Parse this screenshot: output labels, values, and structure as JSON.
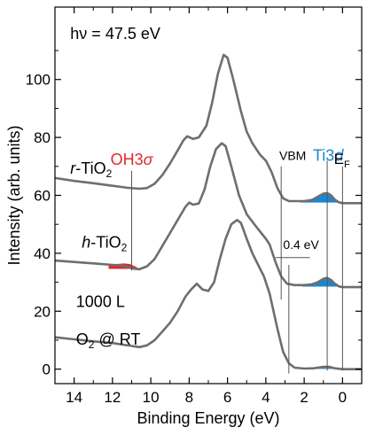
{
  "chart_data": {
    "type": "line",
    "title": "",
    "xlabel": "Binding Energy  (eV)",
    "ylabel": "Intensity  (arb. units)",
    "xlim": [
      15,
      -1
    ],
    "ylim": [
      -5,
      125
    ],
    "x_reversed": true,
    "x_ticks": [
      14,
      12,
      10,
      8,
      6,
      4,
      2,
      0
    ],
    "y_ticks": [
      0,
      20,
      40,
      60,
      80,
      100
    ],
    "grid": false,
    "legend": "none",
    "series": [
      {
        "name": "r-TiO2",
        "label_main": "r",
        "label_rest": "-TiO",
        "label_sub": "2",
        "color": "#6e6e6e",
        "points": [
          [
            15,
            66
          ],
          [
            14,
            65
          ],
          [
            13,
            64.2
          ],
          [
            12,
            63.3
          ],
          [
            11.2,
            62.6
          ],
          [
            10.6,
            62.3
          ],
          [
            10.2,
            62.5
          ],
          [
            9.8,
            64
          ],
          [
            9.4,
            67
          ],
          [
            9,
            71
          ],
          [
            8.6,
            75.5
          ],
          [
            8.3,
            79
          ],
          [
            8.1,
            80.4
          ],
          [
            7.8,
            79.5
          ],
          [
            7.5,
            80
          ],
          [
            7.1,
            84
          ],
          [
            6.8,
            92
          ],
          [
            6.5,
            102
          ],
          [
            6.2,
            108.5
          ],
          [
            6,
            107.5
          ],
          [
            5.7,
            100
          ],
          [
            5.3,
            89
          ],
          [
            5,
            82
          ],
          [
            4.7,
            78
          ],
          [
            4.3,
            74
          ],
          [
            4,
            72
          ],
          [
            3.7,
            68
          ],
          [
            3.4,
            62.5
          ],
          [
            3.1,
            59
          ],
          [
            2.8,
            58
          ],
          [
            2.4,
            58
          ],
          [
            2,
            58
          ],
          [
            1.6,
            58.4
          ],
          [
            1.3,
            59.5
          ],
          [
            1,
            60.6
          ],
          [
            0.8,
            60.8
          ],
          [
            0.6,
            60
          ],
          [
            0.4,
            58.5
          ],
          [
            0.2,
            57.6
          ],
          [
            0,
            57.3
          ],
          [
            -1,
            57.3
          ]
        ],
        "fill": {
          "color": "#1a86d0",
          "points": [
            [
              2.2,
              58
            ],
            [
              1.6,
              58.4
            ],
            [
              1.3,
              59.5
            ],
            [
              1,
              60.6
            ],
            [
              0.8,
              60.8
            ],
            [
              0.6,
              60
            ],
            [
              0.4,
              58.5
            ],
            [
              0.1,
              57.5
            ]
          ]
        }
      },
      {
        "name": "h-TiO2",
        "label_main": "h",
        "label_rest": "-TiO",
        "label_sub": "2",
        "color": "#6e6e6e",
        "points": [
          [
            15,
            37.5
          ],
          [
            14,
            37
          ],
          [
            13,
            36.5
          ],
          [
            12,
            36
          ],
          [
            11.5,
            35.8
          ],
          [
            11,
            34.8
          ],
          [
            10.6,
            34.5
          ],
          [
            10.2,
            35.5
          ],
          [
            9.8,
            38
          ],
          [
            9.4,
            42.5
          ],
          [
            9,
            47
          ],
          [
            8.6,
            51.5
          ],
          [
            8.2,
            56
          ],
          [
            8,
            57.5
          ],
          [
            7.8,
            56.8
          ],
          [
            7.5,
            57.2
          ],
          [
            7.2,
            62
          ],
          [
            6.9,
            70
          ],
          [
            6.6,
            76
          ],
          [
            6.3,
            78
          ],
          [
            6.1,
            77
          ],
          [
            5.8,
            70
          ],
          [
            5.4,
            60
          ],
          [
            5,
            53.5
          ],
          [
            4.6,
            50
          ],
          [
            4.3,
            47.5
          ],
          [
            4,
            45
          ],
          [
            3.8,
            43
          ],
          [
            3.5,
            37
          ],
          [
            3.2,
            32
          ],
          [
            2.9,
            29.5
          ],
          [
            2.5,
            29
          ],
          [
            2,
            29
          ],
          [
            1.6,
            29.3
          ],
          [
            1.3,
            30
          ],
          [
            1,
            31.2
          ],
          [
            0.8,
            31.5
          ],
          [
            0.6,
            30.8
          ],
          [
            0.4,
            29.5
          ],
          [
            0.2,
            28.6
          ],
          [
            0,
            28.3
          ],
          [
            -1,
            28.3
          ]
        ],
        "fill": {
          "color": "#1a86d0",
          "points": [
            [
              2.1,
              29
            ],
            [
              1.6,
              29.3
            ],
            [
              1.3,
              30
            ],
            [
              1,
              31.2
            ],
            [
              0.8,
              31.5
            ],
            [
              0.6,
              30.8
            ],
            [
              0.4,
              29.5
            ],
            [
              0.1,
              28.5
            ]
          ]
        },
        "fill2": {
          "color": "#e0282e",
          "points": [
            [
              12.2,
              36
            ],
            [
              11.8,
              36.3
            ],
            [
              11.4,
              36.5
            ],
            [
              11.1,
              36.3
            ],
            [
              10.8,
              35.4
            ],
            [
              10.6,
              34.6
            ]
          ]
        }
      },
      {
        "name": "1000 L O2 @ RT",
        "color": "#6e6e6e",
        "points": [
          [
            15,
            11
          ],
          [
            14,
            10.3
          ],
          [
            13,
            9.6
          ],
          [
            12,
            9
          ],
          [
            11.5,
            8.5
          ],
          [
            11,
            8
          ],
          [
            10.6,
            7.6
          ],
          [
            10.2,
            8.2
          ],
          [
            9.8,
            10
          ],
          [
            9.4,
            13
          ],
          [
            9,
            16
          ],
          [
            8.6,
            20
          ],
          [
            8.2,
            25
          ],
          [
            7.9,
            27.5
          ],
          [
            7.6,
            29.5
          ],
          [
            7.3,
            27.5
          ],
          [
            7,
            27
          ],
          [
            6.7,
            30
          ],
          [
            6.4,
            38
          ],
          [
            6.1,
            45
          ],
          [
            5.8,
            50
          ],
          [
            5.5,
            51.5
          ],
          [
            5.3,
            50.5
          ],
          [
            5,
            45
          ],
          [
            4.7,
            40
          ],
          [
            4.4,
            36
          ],
          [
            4.1,
            32
          ],
          [
            3.8,
            26
          ],
          [
            3.4,
            14
          ],
          [
            3.1,
            6
          ],
          [
            2.8,
            2
          ],
          [
            2.5,
            0.5
          ],
          [
            2,
            0.2
          ],
          [
            1.5,
            0.3
          ],
          [
            1,
            0.8
          ],
          [
            0.7,
            0.8
          ],
          [
            0.4,
            0.3
          ],
          [
            0,
            0
          ],
          [
            -1,
            0
          ]
        ],
        "fill": {
          "color": "#1a86d0",
          "points": [
            [
              2,
              0.2
            ],
            [
              1.5,
              0.3
            ],
            [
              1,
              0.8
            ],
            [
              0.7,
              0.8
            ],
            [
              0.4,
              0.3
            ],
            [
              0.1,
              0.1
            ]
          ]
        }
      }
    ],
    "annotations": {
      "hv_label": "hν = 47.5 eV",
      "oh_label_main": "OH3",
      "oh_label_sigma": "σ",
      "ti_label_main": "Ti3",
      "ti_label_d": "d",
      "vbm_label": "VBM",
      "ef_label_main": "E",
      "ef_label_sub": "F",
      "shift_label": "0.4 eV",
      "exposure_line1": "1000 L",
      "exposure_line2_main": "O",
      "exposure_line2_sub": "2",
      "exposure_line2_rest": " @ RT",
      "oh_marker_x": 11,
      "ti_marker_x": 0.8,
      "vbm_r_x": 3.2,
      "vbm_o_x": 2.8,
      "ef_x": 0,
      "shift_ref_y": 38.5
    },
    "colors": {
      "curve": "#6e6e6e",
      "oh": "#e0282e",
      "ti": "#1a86d0",
      "axis": "#000000",
      "marker": "#555555"
    }
  }
}
